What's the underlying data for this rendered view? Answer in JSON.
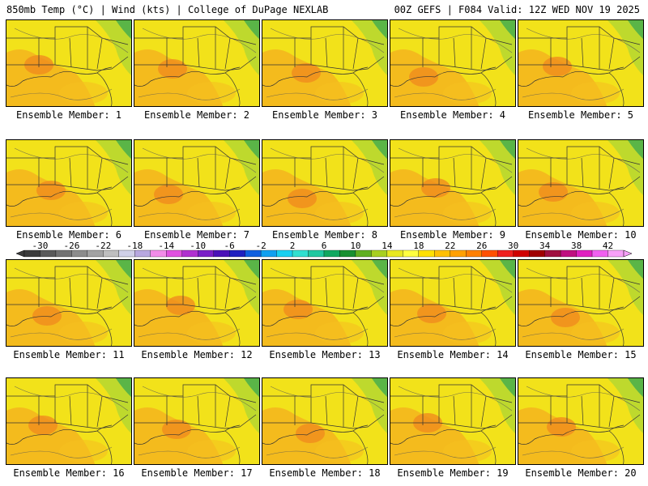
{
  "header": {
    "left": "850mb Temp (°C) | Wind (kts) | College of DuPage NEXLAB",
    "right": "00Z GEFS | F084 Valid: 12Z WED NOV 19 2025"
  },
  "panels": [
    {
      "label": "Ensemble Member: 1"
    },
    {
      "label": "Ensemble Member: 2"
    },
    {
      "label": "Ensemble Member: 3"
    },
    {
      "label": "Ensemble Member: 4"
    },
    {
      "label": "Ensemble Member: 5"
    },
    {
      "label": "Ensemble Member: 6"
    },
    {
      "label": "Ensemble Member: 7"
    },
    {
      "label": "Ensemble Member: 8"
    },
    {
      "label": "Ensemble Member: 9"
    },
    {
      "label": "Ensemble Member: 10"
    },
    {
      "label": "Ensemble Member: 11"
    },
    {
      "label": "Ensemble Member: 12"
    },
    {
      "label": "Ensemble Member: 13"
    },
    {
      "label": "Ensemble Member: 14"
    },
    {
      "label": "Ensemble Member: 15"
    },
    {
      "label": "Ensemble Member: 16"
    },
    {
      "label": "Ensemble Member: 17"
    },
    {
      "label": "Ensemble Member: 18"
    },
    {
      "label": "Ensemble Member: 19"
    },
    {
      "label": "Ensemble Member: 20"
    }
  ],
  "colorbar": {
    "min": -32,
    "max": 44,
    "step": 2,
    "tick_labels": [
      "-30",
      "-26",
      "-22",
      "-18",
      "-14",
      "-10",
      "-6",
      "-2",
      "2",
      "6",
      "10",
      "14",
      "18",
      "22",
      "26",
      "30",
      "34",
      "38",
      "42"
    ],
    "colors": [
      "#3b3b3b",
      "#5a5a5a",
      "#727272",
      "#8c8c8c",
      "#a3a3a3",
      "#bfbfbf",
      "#d0d0e8",
      "#b8a8e0",
      "#f28ce8",
      "#e050e0",
      "#b030d0",
      "#7a1ec8",
      "#4a10b8",
      "#2020c0",
      "#1060e0",
      "#10a0f0",
      "#18d0f0",
      "#30e0d0",
      "#20c8a0",
      "#10a860",
      "#189030",
      "#60b020",
      "#a8d020",
      "#e8e820",
      "#ffff40",
      "#ffe000",
      "#ffc000",
      "#ffa000",
      "#ff8000",
      "#ff5000",
      "#f02020",
      "#d00000",
      "#a00000",
      "#a01040",
      "#c01080",
      "#e020c0",
      "#f060f0",
      "#f8a0f8"
    ]
  }
}
